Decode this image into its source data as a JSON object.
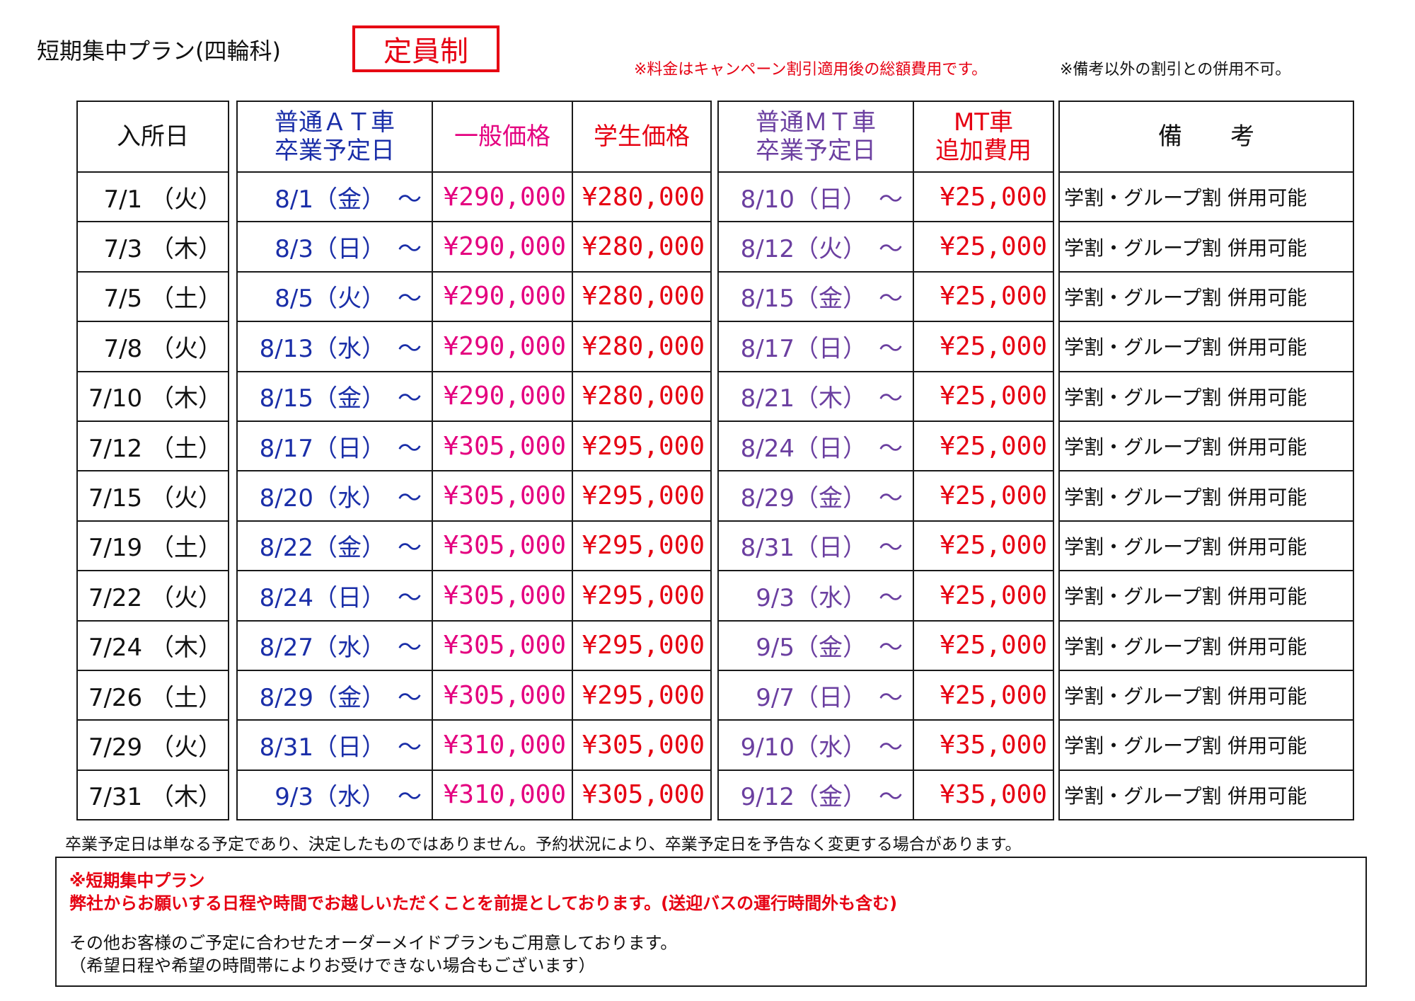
{
  "page": {
    "title": "短期集中プラン(四輪科)",
    "badge": "定員制",
    "note_price": "※料金はキャンペーン割引適用後の総額費用です。",
    "note_discount": "※備考以外の割引との併用不可。"
  },
  "colors": {
    "red": "#e60012",
    "magenta": "#e4007f",
    "blue": "#1a2ea8",
    "purple": "#6b3fa0"
  },
  "headers": {
    "entry": "入所日",
    "at_line1": "普通ＡＴ車",
    "at_line2": "卒業予定日",
    "general_price": "一般価格",
    "student_price": "学生価格",
    "mt_line1": "普通ＭＴ車",
    "mt_line2": "卒業予定日",
    "mt_fee_line1": "MT車",
    "mt_fee_line2": "追加費用",
    "remarks": "備　　考"
  },
  "rows": [
    {
      "entry": "7/1 （火）",
      "at_grad": "8/1（金）　～",
      "general": "¥290,000",
      "student": "¥280,000",
      "mt_grad": "8/10（日）　～",
      "mt_fee": "¥25,000",
      "remarks": "学割・グループ割 併用可能"
    },
    {
      "entry": "7/3 （木）",
      "at_grad": "8/3（日）　～",
      "general": "¥290,000",
      "student": "¥280,000",
      "mt_grad": "8/12（火）　～",
      "mt_fee": "¥25,000",
      "remarks": "学割・グループ割 併用可能"
    },
    {
      "entry": "7/5 （土）",
      "at_grad": "8/5（火）　～",
      "general": "¥290,000",
      "student": "¥280,000",
      "mt_grad": "8/15（金）　～",
      "mt_fee": "¥25,000",
      "remarks": "学割・グループ割 併用可能"
    },
    {
      "entry": "7/8 （火）",
      "at_grad": "8/13（水）　～",
      "general": "¥290,000",
      "student": "¥280,000",
      "mt_grad": "8/17（日）　～",
      "mt_fee": "¥25,000",
      "remarks": "学割・グループ割 併用可能"
    },
    {
      "entry": "7/10 （木）",
      "at_grad": "8/15（金）　～",
      "general": "¥290,000",
      "student": "¥280,000",
      "mt_grad": "8/21（木）　～",
      "mt_fee": "¥25,000",
      "remarks": "学割・グループ割 併用可能"
    },
    {
      "entry": "7/12 （土）",
      "at_grad": "8/17（日）　～",
      "general": "¥305,000",
      "student": "¥295,000",
      "mt_grad": "8/24（日）　～",
      "mt_fee": "¥25,000",
      "remarks": "学割・グループ割 併用可能"
    },
    {
      "entry": "7/15 （火）",
      "at_grad": "8/20（水）　～",
      "general": "¥305,000",
      "student": "¥295,000",
      "mt_grad": "8/29（金）　～",
      "mt_fee": "¥25,000",
      "remarks": "学割・グループ割 併用可能"
    },
    {
      "entry": "7/19 （土）",
      "at_grad": "8/22（金）　～",
      "general": "¥305,000",
      "student": "¥295,000",
      "mt_grad": "8/31（日）　～",
      "mt_fee": "¥25,000",
      "remarks": "学割・グループ割 併用可能"
    },
    {
      "entry": "7/22 （火）",
      "at_grad": "8/24（日）　～",
      "general": "¥305,000",
      "student": "¥295,000",
      "mt_grad": "9/3（水）　～",
      "mt_fee": "¥25,000",
      "remarks": "学割・グループ割 併用可能"
    },
    {
      "entry": "7/24 （木）",
      "at_grad": "8/27（水）　～",
      "general": "¥305,000",
      "student": "¥295,000",
      "mt_grad": "9/5（金）　～",
      "mt_fee": "¥25,000",
      "remarks": "学割・グループ割 併用可能"
    },
    {
      "entry": "7/26 （土）",
      "at_grad": "8/29（金）　～",
      "general": "¥305,000",
      "student": "¥295,000",
      "mt_grad": "9/7（日）　～",
      "mt_fee": "¥25,000",
      "remarks": "学割・グループ割 併用可能"
    },
    {
      "entry": "7/29 （火）",
      "at_grad": "8/31（日）　～",
      "general": "¥310,000",
      "student": "¥305,000",
      "mt_grad": "9/10（水）　～",
      "mt_fee": "¥35,000",
      "remarks": "学割・グループ割 併用可能"
    },
    {
      "entry": "7/31 （木）",
      "at_grad": "9/3（水）　～",
      "general": "¥310,000",
      "student": "¥305,000",
      "mt_grad": "9/12（金）　～",
      "mt_fee": "¥35,000",
      "remarks": "学割・グループ割 併用可能"
    }
  ],
  "footer": {
    "disclaimer": "卒業予定日は単なる予定であり、決定したものではありません。予約状況により、卒業予定日を予告なく変更する場合があります。",
    "box_heading": "※短期集中プラン",
    "box_red_text": "弊社からお願いする日程や時間でお越しいただくことを前提としております。(送迎バスの運行時間外も含む)",
    "box_line1": "その他お客様のご予定に合わせたオーダーメイドプランもご用意しております。",
    "box_line2": "（希望日程や希望の時間帯によりお受けできない場合もございます）"
  }
}
